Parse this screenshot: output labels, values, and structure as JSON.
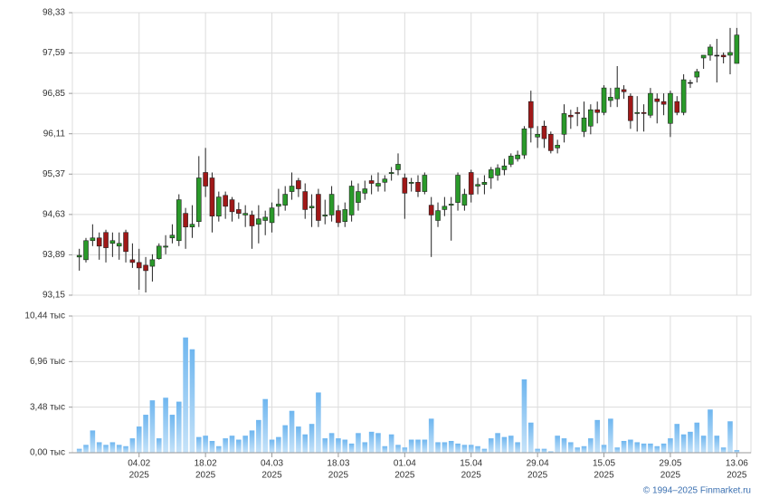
{
  "chart_data": [
    {
      "type": "candlestick",
      "categories": [
        null,
        null,
        null,
        null,
        null,
        null,
        null,
        null,
        null,
        null,
        null,
        null,
        null,
        null,
        null,
        null,
        null,
        null,
        null,
        null,
        null,
        null,
        null,
        null,
        null,
        null,
        null,
        null,
        null,
        null,
        null,
        null,
        null,
        null,
        null,
        null,
        null,
        null,
        null,
        null,
        null,
        null,
        null,
        null,
        null,
        null,
        null,
        null,
        null,
        null,
        null,
        null,
        null,
        null,
        null,
        null,
        null,
        null,
        null,
        null,
        null,
        null,
        null,
        null,
        null,
        null,
        null,
        null,
        null,
        null,
        null,
        null,
        null,
        null,
        null,
        null,
        null,
        null,
        null,
        null,
        null,
        null,
        null,
        null,
        null,
        null,
        null,
        null,
        null,
        null,
        null,
        null,
        null,
        null,
        null,
        null,
        null,
        null,
        null,
        null
      ],
      "open": [
        93.85,
        93.8,
        94.15,
        94.2,
        94.3,
        94.1,
        94.05,
        94.3,
        93.8,
        93.75,
        93.7,
        93.68,
        93.82,
        94.03,
        94.2,
        94.15,
        94.65,
        94.4,
        94.5,
        95.4,
        95.3,
        94.6,
        94.98,
        94.9,
        94.72,
        94.62,
        94.62,
        94.45,
        94.52,
        94.48,
        94.78,
        94.8,
        95.05,
        95.25,
        95.05,
        94.75,
        95.0,
        94.6,
        94.62,
        94.7,
        94.5,
        94.62,
        94.85,
        95.02,
        95.25,
        95.15,
        95.22,
        95.38,
        95.45,
        95.3,
        95.2,
        95.22,
        95.05,
        94.8,
        94.52,
        94.72,
        94.8,
        94.85,
        94.8,
        95.4,
        95.15,
        95.18,
        95.3,
        95.35,
        95.45,
        95.55,
        95.65,
        95.72,
        96.7,
        96.05,
        96.25,
        96.1,
        95.85,
        96.1,
        96.45,
        96.5,
        96.15,
        96.25,
        96.55,
        96.5,
        96.72,
        96.75,
        96.92,
        96.8,
        96.48,
        96.5,
        96.45,
        96.75,
        96.7,
        96.3,
        96.7,
        96.5,
        97.05,
        97.15,
        97.5,
        97.55,
        97.55,
        97.55,
        97.55,
        97.4
      ],
      "high": [
        94.0,
        94.2,
        94.45,
        94.3,
        94.35,
        94.3,
        94.3,
        94.35,
        94.1,
        94.0,
        93.85,
        93.9,
        94.1,
        94.25,
        94.45,
        95.0,
        94.75,
        94.8,
        95.7,
        95.85,
        95.4,
        95.05,
        95.05,
        94.95,
        94.85,
        94.8,
        94.7,
        94.8,
        94.7,
        94.85,
        95.1,
        95.15,
        95.4,
        95.3,
        95.2,
        95.0,
        95.1,
        94.9,
        95.15,
        94.8,
        94.85,
        95.25,
        95.2,
        95.25,
        95.35,
        95.4,
        95.35,
        95.5,
        95.75,
        95.38,
        95.3,
        95.35,
        95.4,
        94.95,
        94.85,
        94.95,
        94.95,
        95.4,
        95.1,
        95.45,
        95.3,
        95.35,
        95.5,
        95.55,
        95.65,
        95.75,
        95.8,
        96.25,
        96.9,
        96.25,
        96.35,
        96.15,
        96.0,
        96.65,
        96.55,
        96.6,
        96.7,
        96.65,
        96.7,
        97.0,
        96.95,
        97.35,
        97.0,
        96.85,
        96.8,
        96.65,
        96.95,
        96.85,
        96.85,
        96.9,
        96.8,
        97.2,
        97.1,
        97.3,
        97.55,
        97.75,
        97.85,
        97.6,
        98.05,
        98.05
      ],
      "low": [
        93.6,
        93.75,
        94.05,
        93.8,
        93.75,
        93.85,
        93.8,
        93.75,
        93.65,
        93.25,
        93.2,
        93.4,
        93.8,
        93.9,
        94.1,
        94.05,
        94.0,
        94.2,
        94.4,
        94.95,
        94.3,
        94.5,
        94.55,
        94.5,
        94.55,
        94.4,
        94.0,
        94.1,
        94.25,
        94.3,
        94.6,
        94.7,
        94.9,
        94.95,
        94.55,
        94.4,
        94.4,
        94.45,
        94.5,
        94.4,
        94.4,
        94.5,
        94.7,
        94.9,
        95.0,
        95.05,
        95.05,
        95.25,
        95.35,
        94.55,
        95.05,
        94.95,
        95.0,
        93.85,
        94.4,
        94.6,
        94.15,
        94.7,
        94.7,
        94.85,
        95.0,
        95.0,
        95.1,
        95.25,
        95.35,
        95.5,
        95.6,
        95.65,
        95.95,
        95.85,
        95.85,
        95.75,
        95.75,
        95.95,
        96.2,
        96.25,
        96.05,
        96.1,
        96.3,
        96.45,
        96.6,
        96.6,
        96.75,
        96.2,
        96.15,
        96.15,
        96.4,
        96.3,
        96.45,
        96.05,
        96.45,
        96.45,
        96.95,
        97.05,
        97.3,
        97.45,
        97.05,
        97.4,
        97.2,
        97.4
      ],
      "close": [
        93.88,
        94.15,
        94.2,
        94.05,
        94.02,
        94.15,
        94.1,
        93.95,
        93.75,
        93.65,
        93.6,
        93.8,
        94.05,
        94.05,
        94.25,
        94.9,
        94.4,
        94.45,
        95.3,
        95.15,
        94.6,
        94.95,
        94.78,
        94.68,
        94.65,
        94.65,
        94.42,
        94.55,
        94.58,
        94.75,
        94.82,
        95.0,
        95.15,
        95.1,
        94.72,
        94.78,
        94.52,
        94.62,
        95.0,
        94.48,
        94.72,
        95.15,
        95.05,
        95.1,
        95.2,
        95.2,
        95.28,
        95.4,
        95.55,
        95.02,
        95.22,
        95.05,
        95.35,
        94.62,
        94.7,
        94.78,
        94.82,
        95.35,
        95.0,
        95.0,
        95.18,
        95.22,
        95.45,
        95.48,
        95.52,
        95.7,
        95.72,
        96.2,
        96.22,
        96.1,
        96.02,
        95.8,
        95.9,
        96.48,
        96.42,
        96.48,
        96.4,
        96.55,
        96.5,
        96.95,
        96.78,
        96.95,
        96.88,
        96.35,
        96.5,
        96.48,
        96.85,
        96.7,
        96.65,
        96.85,
        96.5,
        97.1,
        97.05,
        97.25,
        97.55,
        97.7,
        97.55,
        97.52,
        97.6,
        97.92
      ],
      "up_color": "#2a9a2a",
      "down_color": "#a01818",
      "ylim": [
        93.15,
        98.33
      ],
      "yticks": [
        {
          "value": 93.15,
          "label": "93,15"
        },
        {
          "value": 93.89,
          "label": "93,89"
        },
        {
          "value": 94.63,
          "label": "94,63"
        },
        {
          "value": 95.37,
          "label": "95,37"
        },
        {
          "value": 96.11,
          "label": "96,11"
        },
        {
          "value": 96.85,
          "label": "96,85"
        },
        {
          "value": 97.59,
          "label": "97,59"
        },
        {
          "value": 98.33,
          "label": "98,33"
        }
      ],
      "grid": true
    },
    {
      "type": "bar",
      "values": [
        0.3,
        0.6,
        1.7,
        0.8,
        0.6,
        0.8,
        0.6,
        0.5,
        1.1,
        2.0,
        2.9,
        4.0,
        1.1,
        4.2,
        2.9,
        3.9,
        8.8,
        7.9,
        1.2,
        1.3,
        0.9,
        0.5,
        1.1,
        1.3,
        1.0,
        1.3,
        1.7,
        2.5,
        4.1,
        1.0,
        1.2,
        2.1,
        3.2,
        2.0,
        1.4,
        2.2,
        4.6,
        1.1,
        1.5,
        1.1,
        1.0,
        0.7,
        1.5,
        0.8,
        1.6,
        1.5,
        0.5,
        1.4,
        0.6,
        0.4,
        1.0,
        1.0,
        1.0,
        2.6,
        0.8,
        0.8,
        0.9,
        0.7,
        0.6,
        0.6,
        0.5,
        0.3,
        1.1,
        1.5,
        1.2,
        1.3,
        0.8,
        5.6,
        2.3,
        0.3,
        0.3,
        0.1,
        1.3,
        1.1,
        0.8,
        0.4,
        0.5,
        1.1,
        2.5,
        0.6,
        2.6,
        0.4,
        0.9,
        1.0,
        0.8,
        0.7,
        0.7,
        0.5,
        0.7,
        1.1,
        2.2,
        1.4,
        1.6,
        2.3,
        1.3,
        3.3,
        1.3,
        0.4,
        2.4,
        0.2
      ],
      "color": "#8cc6f2",
      "ylim": [
        0,
        10.44
      ],
      "yticks": [
        {
          "value": 0,
          "label": "0,00 тыс"
        },
        {
          "value": 3.48,
          "label": "3,48 тыс"
        },
        {
          "value": 6.96,
          "label": "6,96 тыс"
        },
        {
          "value": 10.44,
          "label": "10,44 тыс"
        }
      ],
      "xticks": [
        {
          "value": 9,
          "label": "04.02",
          "year": "2025"
        },
        {
          "value": 19,
          "label": "18.02",
          "year": "2025"
        },
        {
          "value": 29,
          "label": "04.03",
          "year": "2025"
        },
        {
          "value": 39,
          "label": "18.03",
          "year": "2025"
        },
        {
          "value": 49,
          "label": "01.04",
          "year": "2025"
        },
        {
          "value": 59,
          "label": "15.04",
          "year": "2025"
        },
        {
          "value": 69,
          "label": "29.04",
          "year": "2025"
        },
        {
          "value": 79,
          "label": "15.05",
          "year": "2025"
        },
        {
          "value": 89,
          "label": "29.05",
          "year": "2025"
        },
        {
          "value": 99,
          "label": "13.06",
          "year": "2025"
        }
      ],
      "grid": true,
      "source": "© 1994–2025 Finmarket.ru"
    }
  ]
}
